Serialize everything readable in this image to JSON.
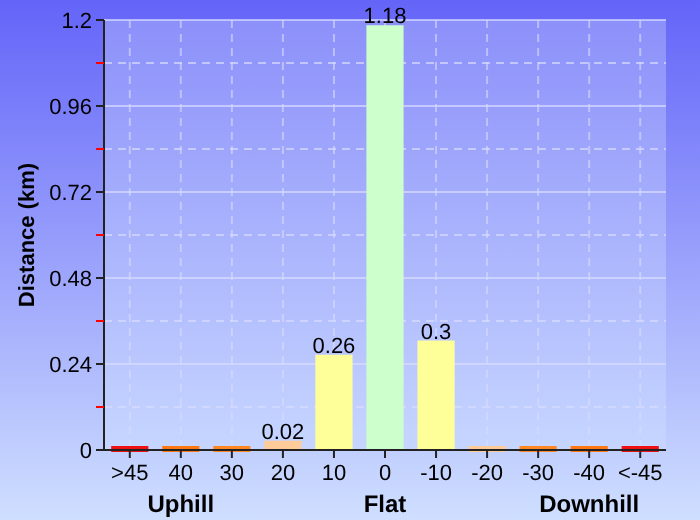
{
  "chart_data": {
    "type": "bar",
    "ylabel": "Distance (km)",
    "categories": [
      ">45",
      "40",
      "30",
      "20",
      "10",
      "0",
      "-10",
      "-20",
      "-30",
      "-40",
      "<-45"
    ],
    "values": [
      0,
      0,
      0,
      0.02,
      0.26,
      1.18,
      0.3,
      0,
      0,
      0,
      0
    ],
    "colors": [
      "#ee1111",
      "#ff7711",
      "#ff8822",
      "#ffcc99",
      "#ffff99",
      "#ccffcc",
      "#ffff99",
      "#ffcc99",
      "#ff8822",
      "#ff7711",
      "#ee1111"
    ],
    "value_labels": [
      null,
      null,
      null,
      "0.02",
      "0.26",
      "1.18",
      "0.3",
      null,
      null,
      null,
      null
    ],
    "ylim": [
      0,
      1.2
    ],
    "yticks": [
      0,
      {
        "value": 0.12,
        "label": null
      },
      0.24,
      {
        "value": 0.36,
        "label": null
      },
      0.48,
      {
        "value": 0.6,
        "label": null
      },
      0.72,
      {
        "value": 0.84,
        "label": null
      },
      0.96,
      {
        "value": 1.08,
        "label": null
      },
      1.2
    ],
    "grid": true,
    "annotations": [
      "Uphill",
      "Flat",
      "Downhill"
    ]
  }
}
